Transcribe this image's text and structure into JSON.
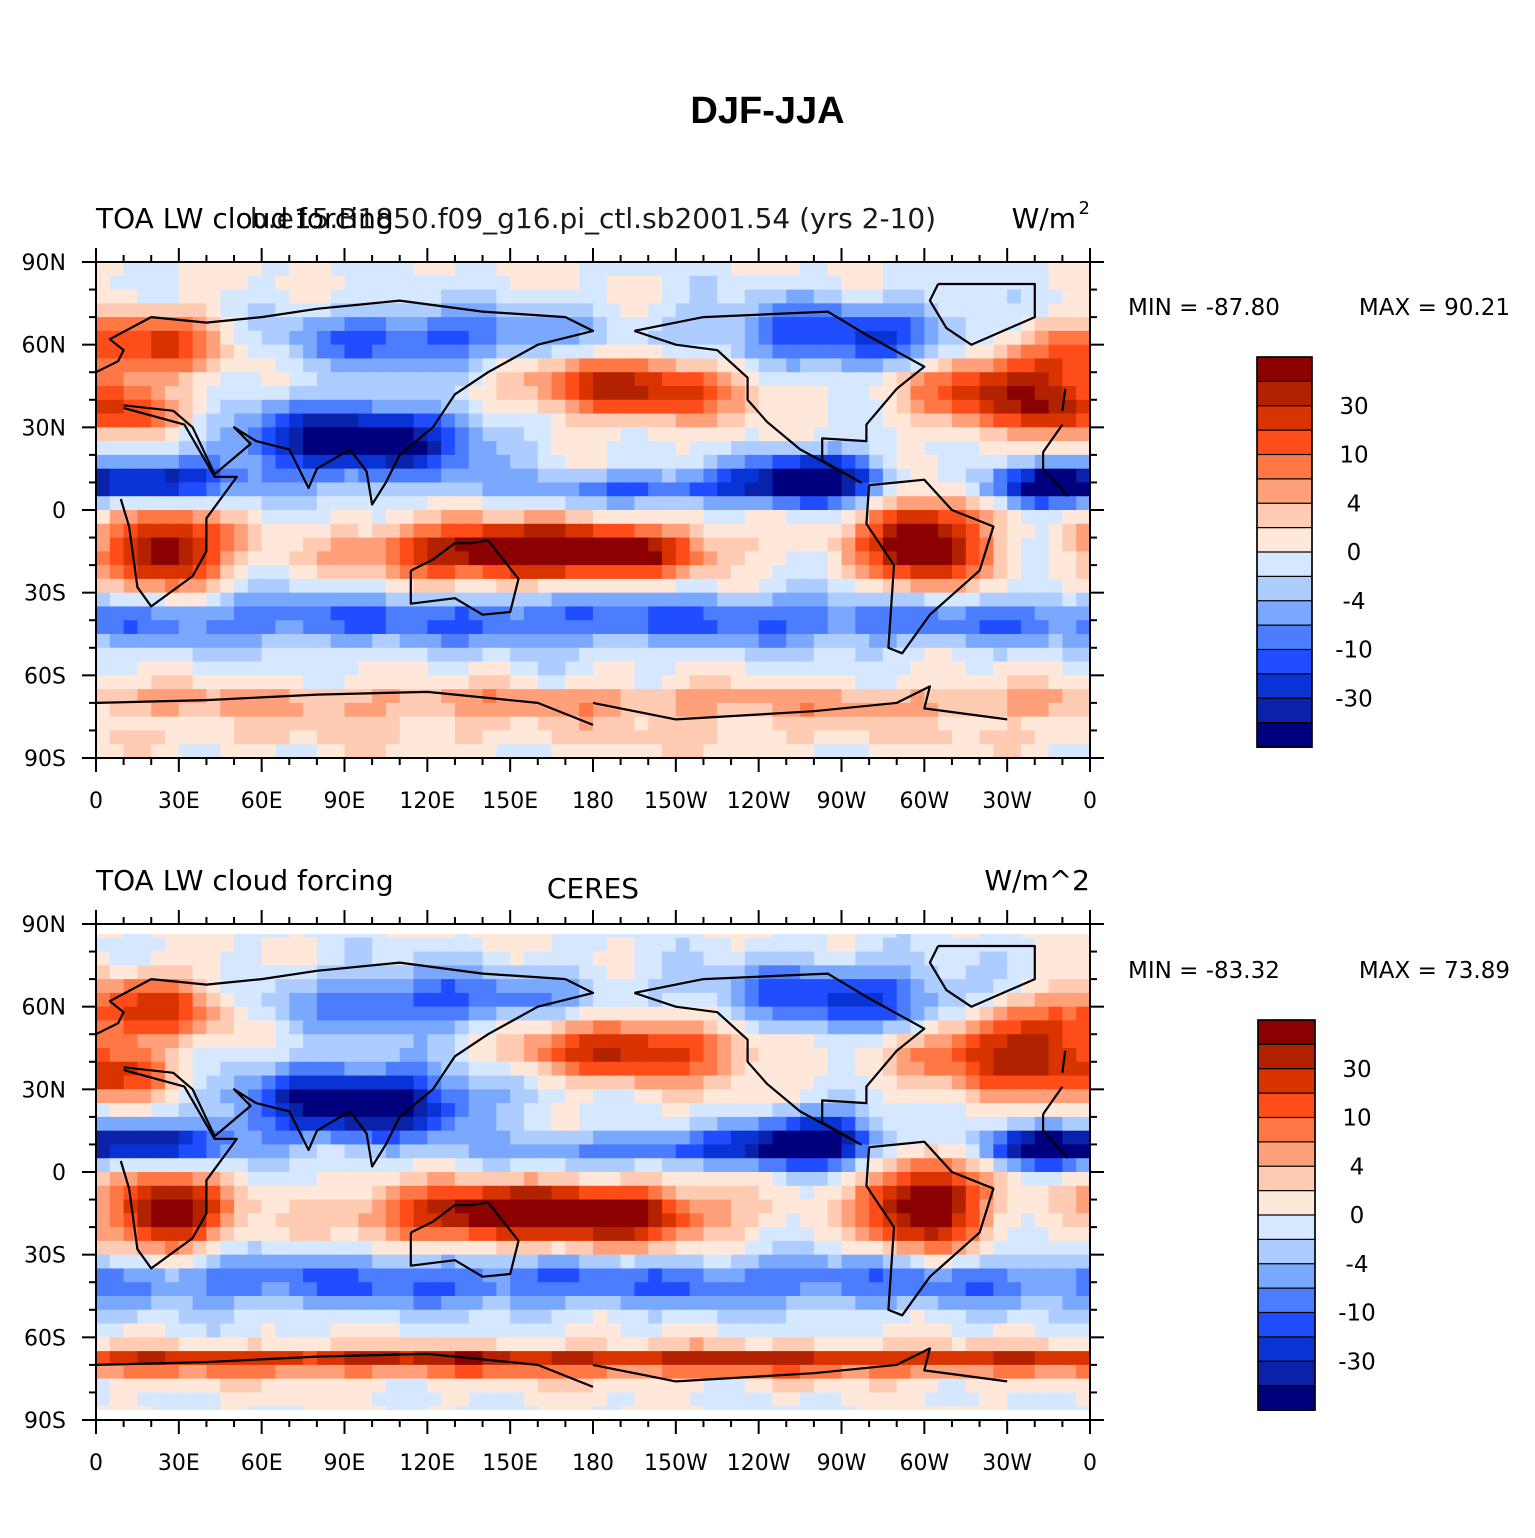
{
  "title": "DJF-JJA",
  "chart_data": [
    {
      "type": "heatmap",
      "left_title": "TOA LW cloud forcing",
      "center_title": "b.e15.B1850.f09_g16.pi_ctl.sb2001.54 (yrs 2-10)",
      "right_title": "W/m",
      "right_title_sup": "2",
      "min_label": "MIN = -87.80",
      "max_label": "MAX =  90.21",
      "y_ticks": [
        "90N",
        "60N",
        "30N",
        "0",
        "30S",
        "60S",
        "90S"
      ],
      "x_ticks": [
        "0",
        "30E",
        "60E",
        "90E",
        "120E",
        "150E",
        "180",
        "150W",
        "120W",
        "90W",
        "60W",
        "30W",
        "0"
      ],
      "colorbar_labels": [
        "30",
        "10",
        "4",
        "0",
        "-4",
        "-10",
        "-30"
      ]
    },
    {
      "type": "heatmap",
      "left_title": "TOA LW cloud forcing",
      "center_title": "CERES",
      "right_title": "W/m^2",
      "right_title_sup": "",
      "min_label": "MIN = -83.32",
      "max_label": "MAX =  73.89",
      "y_ticks": [
        "90N",
        "60N",
        "30N",
        "0",
        "30S",
        "60S",
        "90S"
      ],
      "x_ticks": [
        "0",
        "30E",
        "60E",
        "90E",
        "120E",
        "150E",
        "180",
        "150W",
        "120W",
        "90W",
        "60W",
        "30W",
        "0"
      ],
      "colorbar_labels": [
        "30",
        "10",
        "4",
        "0",
        "-4",
        "-10",
        "-30"
      ]
    }
  ],
  "colorbar_colors": [
    "#8b0000",
    "#b22200",
    "#d93300",
    "#ff4d1a",
    "#ff7744",
    "#ffa07a",
    "#ffcbb2",
    "#ffe8d9",
    "#d6e8ff",
    "#adccff",
    "#7aa8ff",
    "#4d7dff",
    "#1f4dff",
    "#0a33d6",
    "#0a22aa",
    "#00007f"
  ]
}
